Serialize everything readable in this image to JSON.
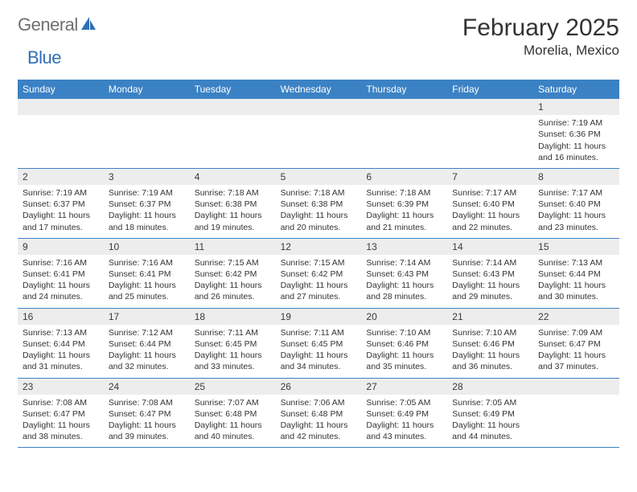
{
  "brand": {
    "part1": "General",
    "part2": "Blue"
  },
  "title": "February 2025",
  "location": "Morelia, Mexico",
  "colors": {
    "header_bg": "#3b82c4",
    "header_fg": "#ffffff",
    "daynum_bg": "#ededed",
    "border": "#3b82c4",
    "text": "#333333",
    "brand_gray": "#6f6f6f",
    "brand_blue": "#2f6fb5"
  },
  "dayNames": [
    "Sunday",
    "Monday",
    "Tuesday",
    "Wednesday",
    "Thursday",
    "Friday",
    "Saturday"
  ],
  "weeks": [
    [
      {
        "n": "",
        "sr": "",
        "ss": "",
        "dl": ""
      },
      {
        "n": "",
        "sr": "",
        "ss": "",
        "dl": ""
      },
      {
        "n": "",
        "sr": "",
        "ss": "",
        "dl": ""
      },
      {
        "n": "",
        "sr": "",
        "ss": "",
        "dl": ""
      },
      {
        "n": "",
        "sr": "",
        "ss": "",
        "dl": ""
      },
      {
        "n": "",
        "sr": "",
        "ss": "",
        "dl": ""
      },
      {
        "n": "1",
        "sr": "Sunrise: 7:19 AM",
        "ss": "Sunset: 6:36 PM",
        "dl": "Daylight: 11 hours and 16 minutes."
      }
    ],
    [
      {
        "n": "2",
        "sr": "Sunrise: 7:19 AM",
        "ss": "Sunset: 6:37 PM",
        "dl": "Daylight: 11 hours and 17 minutes."
      },
      {
        "n": "3",
        "sr": "Sunrise: 7:19 AM",
        "ss": "Sunset: 6:37 PM",
        "dl": "Daylight: 11 hours and 18 minutes."
      },
      {
        "n": "4",
        "sr": "Sunrise: 7:18 AM",
        "ss": "Sunset: 6:38 PM",
        "dl": "Daylight: 11 hours and 19 minutes."
      },
      {
        "n": "5",
        "sr": "Sunrise: 7:18 AM",
        "ss": "Sunset: 6:38 PM",
        "dl": "Daylight: 11 hours and 20 minutes."
      },
      {
        "n": "6",
        "sr": "Sunrise: 7:18 AM",
        "ss": "Sunset: 6:39 PM",
        "dl": "Daylight: 11 hours and 21 minutes."
      },
      {
        "n": "7",
        "sr": "Sunrise: 7:17 AM",
        "ss": "Sunset: 6:40 PM",
        "dl": "Daylight: 11 hours and 22 minutes."
      },
      {
        "n": "8",
        "sr": "Sunrise: 7:17 AM",
        "ss": "Sunset: 6:40 PM",
        "dl": "Daylight: 11 hours and 23 minutes."
      }
    ],
    [
      {
        "n": "9",
        "sr": "Sunrise: 7:16 AM",
        "ss": "Sunset: 6:41 PM",
        "dl": "Daylight: 11 hours and 24 minutes."
      },
      {
        "n": "10",
        "sr": "Sunrise: 7:16 AM",
        "ss": "Sunset: 6:41 PM",
        "dl": "Daylight: 11 hours and 25 minutes."
      },
      {
        "n": "11",
        "sr": "Sunrise: 7:15 AM",
        "ss": "Sunset: 6:42 PM",
        "dl": "Daylight: 11 hours and 26 minutes."
      },
      {
        "n": "12",
        "sr": "Sunrise: 7:15 AM",
        "ss": "Sunset: 6:42 PM",
        "dl": "Daylight: 11 hours and 27 minutes."
      },
      {
        "n": "13",
        "sr": "Sunrise: 7:14 AM",
        "ss": "Sunset: 6:43 PM",
        "dl": "Daylight: 11 hours and 28 minutes."
      },
      {
        "n": "14",
        "sr": "Sunrise: 7:14 AM",
        "ss": "Sunset: 6:43 PM",
        "dl": "Daylight: 11 hours and 29 minutes."
      },
      {
        "n": "15",
        "sr": "Sunrise: 7:13 AM",
        "ss": "Sunset: 6:44 PM",
        "dl": "Daylight: 11 hours and 30 minutes."
      }
    ],
    [
      {
        "n": "16",
        "sr": "Sunrise: 7:13 AM",
        "ss": "Sunset: 6:44 PM",
        "dl": "Daylight: 11 hours and 31 minutes."
      },
      {
        "n": "17",
        "sr": "Sunrise: 7:12 AM",
        "ss": "Sunset: 6:44 PM",
        "dl": "Daylight: 11 hours and 32 minutes."
      },
      {
        "n": "18",
        "sr": "Sunrise: 7:11 AM",
        "ss": "Sunset: 6:45 PM",
        "dl": "Daylight: 11 hours and 33 minutes."
      },
      {
        "n": "19",
        "sr": "Sunrise: 7:11 AM",
        "ss": "Sunset: 6:45 PM",
        "dl": "Daylight: 11 hours and 34 minutes."
      },
      {
        "n": "20",
        "sr": "Sunrise: 7:10 AM",
        "ss": "Sunset: 6:46 PM",
        "dl": "Daylight: 11 hours and 35 minutes."
      },
      {
        "n": "21",
        "sr": "Sunrise: 7:10 AM",
        "ss": "Sunset: 6:46 PM",
        "dl": "Daylight: 11 hours and 36 minutes."
      },
      {
        "n": "22",
        "sr": "Sunrise: 7:09 AM",
        "ss": "Sunset: 6:47 PM",
        "dl": "Daylight: 11 hours and 37 minutes."
      }
    ],
    [
      {
        "n": "23",
        "sr": "Sunrise: 7:08 AM",
        "ss": "Sunset: 6:47 PM",
        "dl": "Daylight: 11 hours and 38 minutes."
      },
      {
        "n": "24",
        "sr": "Sunrise: 7:08 AM",
        "ss": "Sunset: 6:47 PM",
        "dl": "Daylight: 11 hours and 39 minutes."
      },
      {
        "n": "25",
        "sr": "Sunrise: 7:07 AM",
        "ss": "Sunset: 6:48 PM",
        "dl": "Daylight: 11 hours and 40 minutes."
      },
      {
        "n": "26",
        "sr": "Sunrise: 7:06 AM",
        "ss": "Sunset: 6:48 PM",
        "dl": "Daylight: 11 hours and 42 minutes."
      },
      {
        "n": "27",
        "sr": "Sunrise: 7:05 AM",
        "ss": "Sunset: 6:49 PM",
        "dl": "Daylight: 11 hours and 43 minutes."
      },
      {
        "n": "28",
        "sr": "Sunrise: 7:05 AM",
        "ss": "Sunset: 6:49 PM",
        "dl": "Daylight: 11 hours and 44 minutes."
      },
      {
        "n": "",
        "sr": "",
        "ss": "",
        "dl": ""
      }
    ]
  ]
}
